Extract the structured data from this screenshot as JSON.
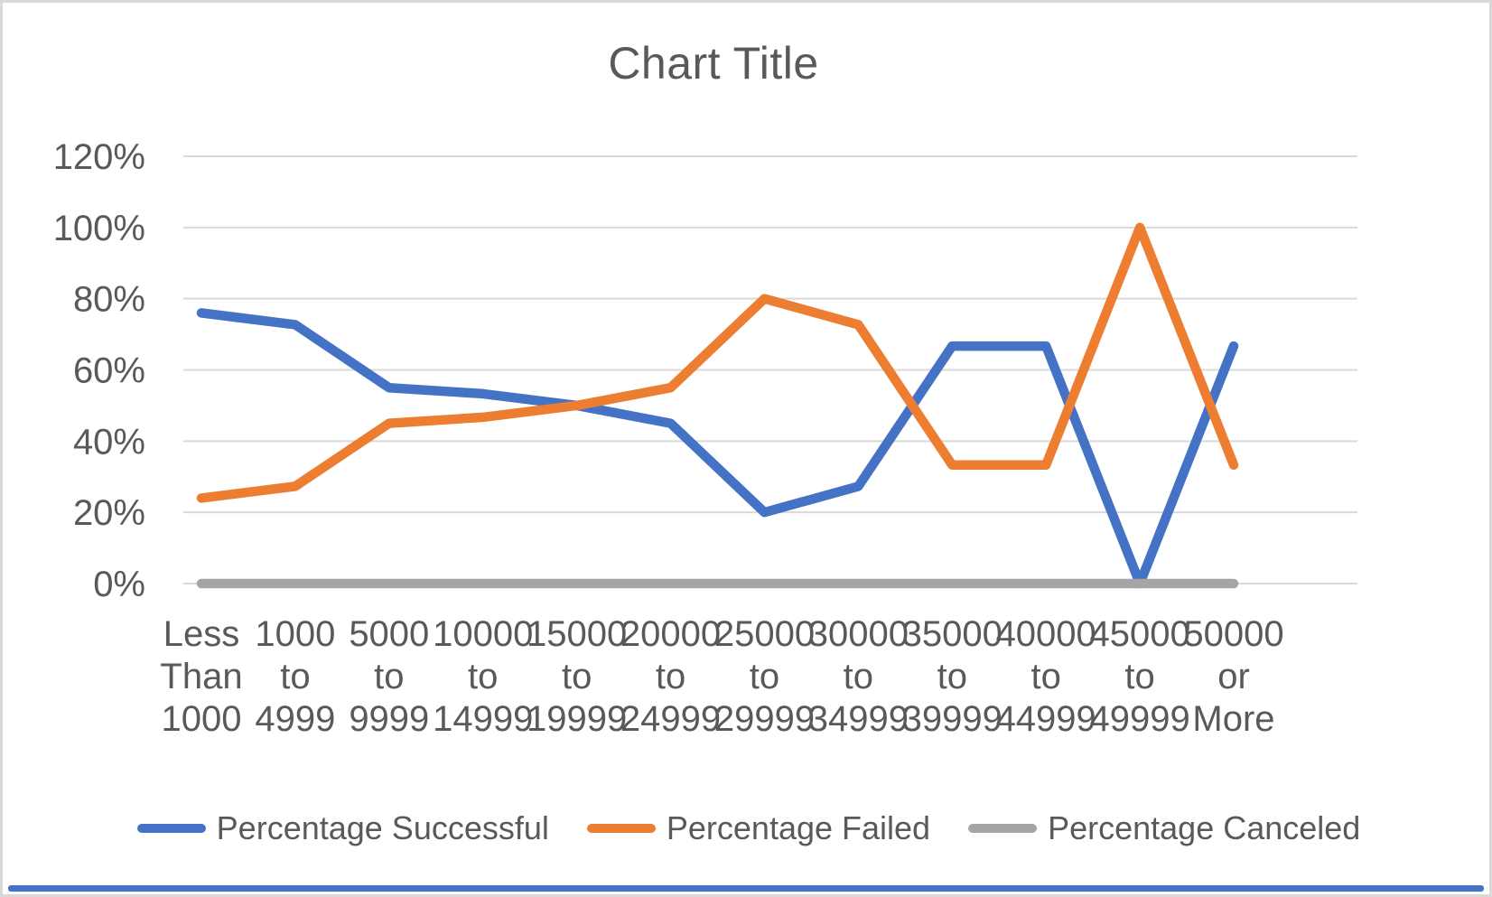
{
  "chart_data": {
    "type": "line",
    "title": "Chart Title",
    "categories": [
      "Less Than 1000",
      "1000 to 4999",
      "5000 to 9999",
      "10000 to 14999",
      "15000 to 19999",
      "20000 to 24999",
      "25000 to 29999",
      "30000 to 34999",
      "35000 to 39999",
      "40000 to 44999",
      "45000 to 49999",
      "50000 or More"
    ],
    "series": [
      {
        "name": "Percentage Successful",
        "color": "#4472C4",
        "values": [
          76,
          72.7,
          55,
          53.3,
          50,
          45,
          20,
          27.3,
          66.7,
          66.7,
          0,
          66.7
        ]
      },
      {
        "name": "Percentage Failed",
        "color": "#ED7D31",
        "values": [
          24,
          27.3,
          45,
          46.7,
          50,
          55,
          80,
          72.7,
          33.3,
          33.3,
          100,
          33.3
        ]
      },
      {
        "name": "Percentage Canceled",
        "color": "#A5A5A5",
        "values": [
          0,
          0,
          0,
          0,
          0,
          0,
          0,
          0,
          0,
          0,
          0,
          0
        ]
      }
    ],
    "y_axis": {
      "min": 0,
      "max": 120,
      "step": 20,
      "ticks": [
        "0%",
        "20%",
        "40%",
        "60%",
        "80%",
        "100%",
        "120%"
      ]
    },
    "grid": true,
    "legend_position": "bottom",
    "colors": {
      "text": "#595959",
      "gridline": "#D9D9D9",
      "background": "#FFFFFF",
      "border": "#D9D9D9",
      "bottom_strip": "#4472C4"
    }
  }
}
